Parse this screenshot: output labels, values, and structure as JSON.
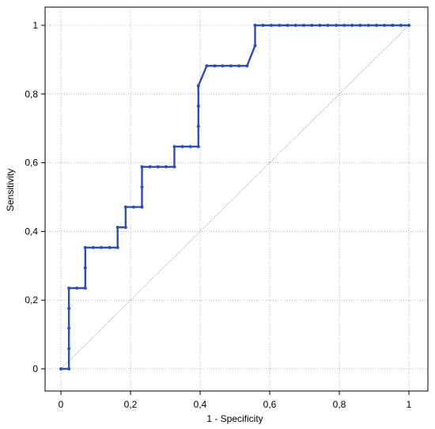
{
  "chart_data": {
    "type": "line",
    "title": "",
    "xlabel": "1 - Specificity",
    "ylabel": "Sensitivity",
    "xlim": [
      0,
      1
    ],
    "ylim": [
      0,
      1
    ],
    "grid": true,
    "xticks": [
      0,
      0.2,
      0.4,
      0.6,
      0.8,
      1
    ],
    "yticks": [
      0,
      0.2,
      0.4,
      0.6,
      0.8,
      1
    ],
    "xtick_labels": [
      "0",
      "0,2",
      "0,4",
      "0,6",
      "0,8",
      "1"
    ],
    "ytick_labels": [
      "0",
      "0,2",
      "0,4",
      "0,6",
      "0,8",
      "1"
    ],
    "colors": {
      "roc": "#2f4fb0",
      "reference": "#808080",
      "grid": "#b0b0b0"
    },
    "series": [
      {
        "x": [
          0,
          0.023,
          0.023,
          0.023,
          0.023,
          0.023,
          0.046,
          0.07,
          0.07,
          0.07,
          0.093,
          0.116,
          0.14,
          0.163,
          0.163,
          0.186,
          0.186,
          0.209,
          0.233,
          0.233,
          0.233,
          0.256,
          0.279,
          0.302,
          0.326,
          0.326,
          0.349,
          0.372,
          0.395,
          0.395,
          0.395,
          0.395,
          0.419,
          0.442,
          0.465,
          0.488,
          0.512,
          0.535,
          0.558,
          0.558,
          0.558,
          0.581,
          0.605,
          0.628,
          0.651,
          0.674,
          0.698,
          0.721,
          0.744,
          0.767,
          0.791,
          0.814,
          0.837,
          0.86,
          0.884,
          0.907,
          0.93,
          0.953,
          0.977,
          1
        ],
        "y": [
          0,
          0,
          0.059,
          0.118,
          0.176,
          0.235,
          0.235,
          0.235,
          0.294,
          0.353,
          0.353,
          0.353,
          0.353,
          0.353,
          0.412,
          0.412,
          0.471,
          0.471,
          0.471,
          0.529,
          0.588,
          0.588,
          0.588,
          0.588,
          0.588,
          0.647,
          0.647,
          0.647,
          0.647,
          0.706,
          0.765,
          0.824,
          0.882,
          0.882,
          0.882,
          0.882,
          0.882,
          0.882,
          0.941,
          1,
          1,
          1,
          1,
          1,
          1,
          1,
          1,
          1,
          1,
          1,
          1,
          1,
          1,
          1,
          1,
          1,
          1,
          1,
          1,
          1
        ]
      }
    ],
    "reference_line": {
      "x": [
        0,
        1
      ],
      "y": [
        0,
        1
      ]
    }
  }
}
